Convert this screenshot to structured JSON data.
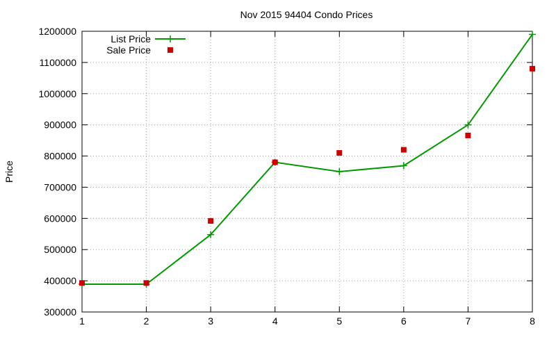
{
  "chart_data": {
    "type": "line",
    "title": "Nov 2015 94404 Condo Prices",
    "xlabel": "",
    "ylabel": "Price",
    "x": [
      1,
      2,
      3,
      4,
      5,
      6,
      7,
      8
    ],
    "xlim": [
      1,
      8
    ],
    "ylim": [
      300000,
      1200000
    ],
    "yticks": [
      300000,
      400000,
      500000,
      600000,
      700000,
      800000,
      900000,
      1000000,
      1100000,
      1200000
    ],
    "grid": true,
    "legend_position": "top-left",
    "series": [
      {
        "name": "List Price",
        "style": "line with plus markers",
        "color": "#009900",
        "values": [
          389000,
          389000,
          548000,
          780000,
          750000,
          769000,
          900000,
          1190000
        ]
      },
      {
        "name": "Sale Price",
        "style": "square points",
        "color": "#cc0000",
        "values": [
          393000,
          393000,
          592000,
          780000,
          810000,
          820000,
          866000,
          1080000
        ]
      }
    ]
  }
}
